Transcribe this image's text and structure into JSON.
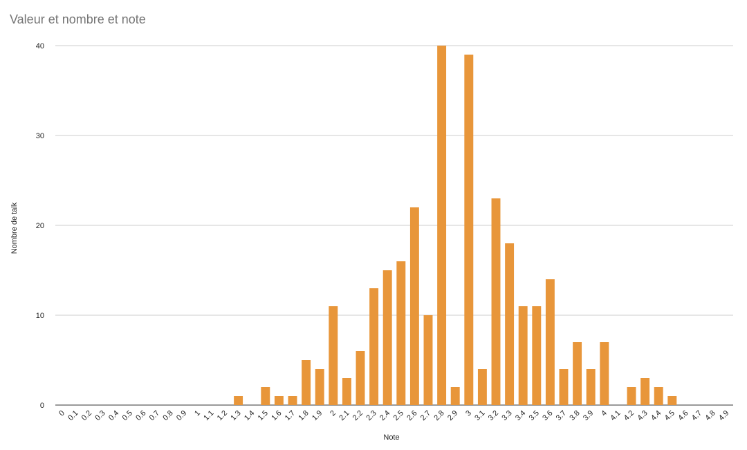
{
  "chart_data": {
    "type": "bar",
    "title": "Valeur et nombre et note",
    "x_label": "Note",
    "y_label": "Nombre de talk",
    "categories": [
      "0",
      "0.1",
      "0.2",
      "0.3",
      "0.4",
      "0.5",
      "0.6",
      "0.7",
      "0.8",
      "0.9",
      "1",
      "1.1",
      "1.2",
      "1.3",
      "1.4",
      "1.5",
      "1.6",
      "1.7",
      "1.8",
      "1.9",
      "2",
      "2.1",
      "2.2",
      "2.3",
      "2.4",
      "2.5",
      "2.6",
      "2.7",
      "2.8",
      "2.9",
      "3",
      "3.1",
      "3.2",
      "3.3",
      "3.4",
      "3.5",
      "3.6",
      "3.7",
      "3.8",
      "3.9",
      "4",
      "4.1",
      "4.2",
      "4.3",
      "4.4",
      "4.5",
      "4.6",
      "4.7",
      "4.8",
      "4.9"
    ],
    "values": [
      0,
      0,
      0,
      0,
      0,
      0,
      0,
      0,
      0,
      0,
      0,
      0,
      0,
      1,
      0,
      2,
      1,
      1,
      5,
      4,
      11,
      3,
      6,
      13,
      15,
      16,
      22,
      10,
      40,
      2,
      39,
      4,
      23,
      18,
      11,
      11,
      14,
      4,
      7,
      4,
      7,
      0,
      2,
      3,
      2,
      1,
      0,
      0,
      0,
      0
    ],
    "color": "#e8963a",
    "ylim": [
      0,
      40
    ],
    "yticks": [
      0,
      10,
      20,
      30,
      40
    ],
    "grid": true
  }
}
